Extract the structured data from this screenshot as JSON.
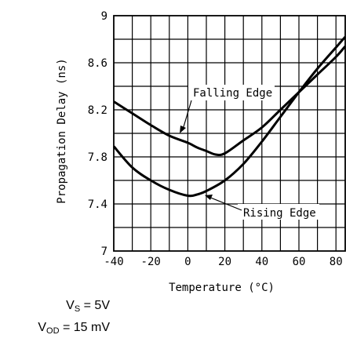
{
  "chart_data": {
    "type": "line",
    "title": "",
    "xlabel": "Temperature (°C)",
    "ylabel": "Propagation Delay (ns)",
    "xlim": [
      -40,
      85
    ],
    "ylim": [
      7,
      9
    ],
    "x_ticks": [
      "-40",
      "-20",
      "0",
      "20",
      "40",
      "60",
      "80"
    ],
    "y_ticks": [
      "7",
      "7.4",
      "7.8",
      "8.2",
      "8.6",
      "9"
    ],
    "grid": true,
    "series": [
      {
        "name": "Falling Edge",
        "x": [
          -40,
          -30,
          -20,
          -10,
          0,
          5,
          10,
          15,
          20,
          30,
          40,
          50,
          60,
          70,
          80,
          85
        ],
        "y": [
          8.27,
          8.17,
          8.07,
          7.98,
          7.92,
          7.88,
          7.85,
          7.82,
          7.83,
          7.94,
          8.05,
          8.2,
          8.35,
          8.5,
          8.65,
          8.74
        ]
      },
      {
        "name": "Rising Edge",
        "x": [
          -40,
          -30,
          -20,
          -10,
          0,
          5,
          10,
          20,
          30,
          40,
          50,
          60,
          70,
          80,
          85
        ],
        "y": [
          7.89,
          7.71,
          7.6,
          7.52,
          7.47,
          7.48,
          7.51,
          7.6,
          7.74,
          7.93,
          8.14,
          8.35,
          8.55,
          8.73,
          8.82
        ]
      }
    ],
    "annotations": [
      "Falling Edge",
      "Rising Edge"
    ]
  },
  "conditions": {
    "vs_main": "V",
    "vs_sub": "S",
    "vs_value": " = 5V",
    "vod_main": "V",
    "vod_sub": "OD",
    "vod_value": " = 15 mV"
  }
}
